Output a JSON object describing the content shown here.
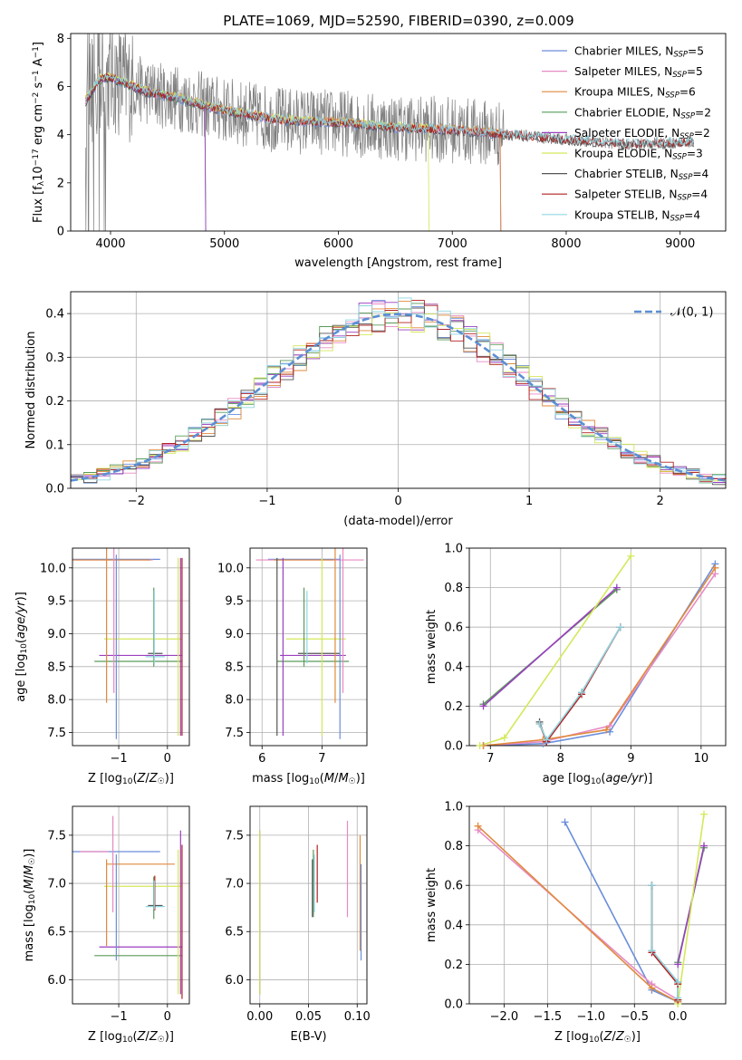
{
  "figure_title": "PLATE=1069, MJD=52590, FIBERID=0390, z=0.009",
  "colors": {
    "series": [
      "#6a8edb",
      "#e78ac3",
      "#e08a3c",
      "#5a9a5a",
      "#9b3fbf",
      "#d4e85a",
      "#555555",
      "#b22020",
      "#8fd6e0"
    ],
    "data": "#808080",
    "gauss": "#5b8fd4",
    "grid": "#b0b0b0"
  },
  "legend_entries": [
    {
      "name": "Chabrier MILES, N",
      "sub": "SSP",
      "val": "=5"
    },
    {
      "name": "Salpeter MILES, N",
      "sub": "SSP",
      "val": "=5"
    },
    {
      "name": "Kroupa MILES, N",
      "sub": "SSP",
      "val": "=6"
    },
    {
      "name": "Chabrier ELODIE, N",
      "sub": "SSP",
      "val": "=2"
    },
    {
      "name": "Salpeter ELODIE, N",
      "sub": "SSP",
      "val": "=2"
    },
    {
      "name": "Kroupa ELODIE, N",
      "sub": "SSP",
      "val": "=3"
    },
    {
      "name": "Chabrier STELIB, N",
      "sub": "SSP",
      "val": "=4"
    },
    {
      "name": "Salpeter STELIB, N",
      "sub": "SSP",
      "val": "=4"
    },
    {
      "name": "Kroupa STELIB, N",
      "sub": "SSP",
      "val": "=4"
    }
  ],
  "chart_data": [
    {
      "type": "line",
      "id": "spectrum",
      "xlabel": "wavelength [Angstrom, rest frame]",
      "ylabel": "Flux [fλ10⁻¹⁷ erg cm⁻² s⁻¹ A⁻¹]",
      "xlim": [
        3650,
        9400
      ],
      "ylim": [
        0,
        8.2
      ],
      "xticks": [
        4000,
        5000,
        6000,
        7000,
        8000,
        9000
      ],
      "yticks": [
        0,
        2,
        4,
        6,
        8
      ],
      "data_range": [
        3780,
        9120
      ],
      "data_envelope": {
        "x": [
          3780,
          3900,
          4000,
          4300,
          4600,
          5000,
          5500,
          6000,
          6500,
          7000,
          7500,
          8000,
          8500,
          9120
        ],
        "y": [
          5.4,
          6.3,
          6.4,
          5.8,
          5.5,
          5.0,
          4.6,
          4.5,
          4.3,
          4.2,
          4.0,
          3.8,
          3.6,
          3.7
        ]
      },
      "models": [
        {
          "series": 0,
          "range": [
            3780,
            7420
          ]
        },
        {
          "series": 1,
          "range": [
            3780,
            7420
          ]
        },
        {
          "series": 2,
          "range": [
            3780,
            7420
          ]
        },
        {
          "series": 3,
          "range": [
            3780,
            4830
          ]
        },
        {
          "series": 4,
          "range": [
            3780,
            4830
          ]
        },
        {
          "series": 5,
          "range": [
            3780,
            6790
          ]
        },
        {
          "series": 6,
          "range": [
            3780,
            9120
          ]
        },
        {
          "series": 7,
          "range": [
            3780,
            9120
          ]
        },
        {
          "series": 8,
          "range": [
            3780,
            9120
          ]
        }
      ]
    },
    {
      "type": "histogram",
      "id": "residuals",
      "xlabel": "(data-model)/error",
      "ylabel": "Normed distribution",
      "xlim": [
        -2.5,
        2.5
      ],
      "ylim": [
        0,
        0.45
      ],
      "xticks": [
        -2,
        -1,
        0,
        1,
        2
      ],
      "yticks": [
        0,
        0.1,
        0.2,
        0.3,
        0.4
      ],
      "bin_width": 0.1,
      "legend": "𝒩(0, 1)"
    },
    {
      "type": "errorbar",
      "id": "age_vs_Z",
      "xlabel": "Z [log10(Z/Z☉)]",
      "ylabel": "age  [log10(age/yr)]",
      "xlim": [
        -1.95,
        0.45
      ],
      "ylim": [
        7.3,
        10.3
      ],
      "xticks": [
        -1,
        0
      ],
      "yticks": [
        7.5,
        8.0,
        8.5,
        9.0,
        9.5,
        10.0
      ],
      "points": [
        {
          "s": 0,
          "x": -1.05,
          "y": 10.13,
          "xerr": 0.9,
          "yerr": 0
        },
        {
          "s": 1,
          "x": -1.2,
          "y": 10.12,
          "xerr": 0.9,
          "yerr": 0
        },
        {
          "s": 2,
          "x": -1.25,
          "y": 10.12,
          "xerr": 0.9,
          "yerr": 0
        },
        {
          "s": 5,
          "x": -0.5,
          "y": 8.92,
          "xerr": 0.8,
          "yerr": 0
        },
        {
          "s": 6,
          "x": -0.25,
          "y": 8.7,
          "xerr": 0.15,
          "yerr": 0
        },
        {
          "s": 8,
          "x": -0.25,
          "y": 8.65,
          "xerr": 0.2,
          "yerr": 0
        },
        {
          "s": 4,
          "x": -0.55,
          "y": 8.67,
          "xerr": 0.85,
          "yerr": 0
        },
        {
          "s": 3,
          "x": -0.6,
          "y": 8.58,
          "xerr": 0.9,
          "yerr": 0
        },
        {
          "s": 0,
          "x": -1.05,
          "y": 8.8,
          "xerr": 0,
          "yerr": 1.4
        },
        {
          "s": 2,
          "x": -1.25,
          "y": 9.25,
          "xerr": 0,
          "yerr": 1.3
        },
        {
          "s": 1,
          "x": -1.1,
          "y": 9.3,
          "xerr": 0,
          "yerr": 1.2
        },
        {
          "s": 3,
          "x": -0.28,
          "y": 9.1,
          "xerr": 0,
          "yerr": 0.6
        },
        {
          "s": 8,
          "x": -0.27,
          "y": 9.1,
          "xerr": 0,
          "yerr": 0.55
        },
        {
          "s": 4,
          "x": 0.27,
          "y": 8.8,
          "xerr": 0,
          "yerr": 1.35
        },
        {
          "s": 5,
          "x": 0.22,
          "y": 8.8,
          "xerr": 0,
          "yerr": 1.35
        },
        {
          "s": 7,
          "x": 0.3,
          "y": 8.8,
          "xerr": 0,
          "yerr": 1.35
        }
      ]
    },
    {
      "type": "errorbar",
      "id": "age_vs_mass",
      "xlabel": "mass [log10(M/M☉)]",
      "ylabel": "",
      "xlim": [
        5.8,
        7.75
      ],
      "ylim": [
        7.3,
        10.3
      ],
      "xticks": [
        6,
        7
      ],
      "yticks": [
        7.5,
        8.0,
        8.5,
        9.0,
        9.5,
        10.0
      ],
      "points": [
        {
          "s": 0,
          "x": 6.7,
          "y": 10.13,
          "xerr": 0.6,
          "yerr": 0
        },
        {
          "s": 1,
          "x": 6.8,
          "y": 10.12,
          "xerr": 0.9,
          "yerr": 0
        },
        {
          "s": 2,
          "x": 6.7,
          "y": 10.12,
          "xerr": 0.5,
          "yerr": 0
        },
        {
          "s": 5,
          "x": 6.9,
          "y": 8.92,
          "xerr": 0.5,
          "yerr": 0
        },
        {
          "s": 6,
          "x": 6.95,
          "y": 8.7,
          "xerr": 0.35,
          "yerr": 0
        },
        {
          "s": 4,
          "x": 6.85,
          "y": 8.67,
          "xerr": 0.55,
          "yerr": 0
        },
        {
          "s": 3,
          "x": 6.85,
          "y": 8.58,
          "xerr": 0.6,
          "yerr": 0
        },
        {
          "s": 0,
          "x": 7.3,
          "y": 8.8,
          "xerr": 0,
          "yerr": 1.4
        },
        {
          "s": 2,
          "x": 7.22,
          "y": 9.25,
          "xerr": 0,
          "yerr": 1.3
        },
        {
          "s": 1,
          "x": 7.35,
          "y": 9.3,
          "xerr": 0,
          "yerr": 1.2
        },
        {
          "s": 3,
          "x": 6.7,
          "y": 9.1,
          "xerr": 0,
          "yerr": 0.6
        },
        {
          "s": 8,
          "x": 6.75,
          "y": 9.1,
          "xerr": 0,
          "yerr": 0.55
        },
        {
          "s": 6,
          "x": 6.25,
          "y": 8.8,
          "xerr": 0,
          "yerr": 1.35
        },
        {
          "s": 4,
          "x": 6.35,
          "y": 8.8,
          "xerr": 0,
          "yerr": 1.35
        },
        {
          "s": 5,
          "x": 7.0,
          "y": 8.8,
          "xerr": 0,
          "yerr": 1.35
        }
      ]
    },
    {
      "type": "line",
      "id": "weight_vs_age",
      "xlabel": "age  [log10(age/yr)]",
      "ylabel": "mass weight",
      "xlim": [
        6.7,
        10.35
      ],
      "ylim": [
        0,
        1.0
      ],
      "xticks": [
        7,
        8,
        9,
        10
      ],
      "yticks": [
        0,
        0.2,
        0.4,
        0.6,
        0.8,
        1.0
      ],
      "series": [
        {
          "s": 0,
          "x": [
            6.9,
            7.75,
            8.7,
            10.2
          ],
          "y": [
            0.0,
            0.01,
            0.07,
            0.92
          ]
        },
        {
          "s": 1,
          "x": [
            6.9,
            7.75,
            8.7,
            10.2
          ],
          "y": [
            0.0,
            0.02,
            0.1,
            0.87
          ]
        },
        {
          "s": 2,
          "x": [
            6.9,
            7.75,
            8.65,
            10.2
          ],
          "y": [
            0.0,
            0.03,
            0.08,
            0.9
          ]
        },
        {
          "s": 3,
          "x": [
            6.9,
            8.8
          ],
          "y": [
            0.21,
            0.79
          ]
        },
        {
          "s": 4,
          "x": [
            6.9,
            8.8
          ],
          "y": [
            0.2,
            0.8
          ]
        },
        {
          "s": 5,
          "x": [
            6.85,
            7.2,
            9.0
          ],
          "y": [
            0.0,
            0.04,
            0.96
          ]
        },
        {
          "s": 6,
          "x": [
            7.7,
            7.8,
            8.3,
            8.85
          ],
          "y": [
            0.12,
            0.02,
            0.27,
            0.6
          ]
        },
        {
          "s": 7,
          "x": [
            7.7,
            7.8,
            8.3,
            8.85
          ],
          "y": [
            0.11,
            0.02,
            0.26,
            0.6
          ]
        },
        {
          "s": 8,
          "x": [
            7.7,
            7.8,
            8.3,
            8.85
          ],
          "y": [
            0.11,
            0.03,
            0.27,
            0.6
          ]
        }
      ]
    },
    {
      "type": "errorbar",
      "id": "mass_vs_Z",
      "xlabel": "Z [log10(Z/Z☉)]",
      "ylabel": "mass [log10(M/M☉)]",
      "xlim": [
        -1.95,
        0.45
      ],
      "ylim": [
        5.75,
        7.8
      ],
      "xticks": [
        -1,
        0
      ],
      "yticks": [
        6.0,
        6.5,
        7.0,
        7.5
      ],
      "points": [
        {
          "s": 0,
          "x": -1.05,
          "y": 7.33,
          "xerr": 0.9,
          "yerr": 0
        },
        {
          "s": 1,
          "x": -1.5,
          "y": 7.33,
          "xerr": 0.3,
          "yerr": 0
        },
        {
          "s": 2,
          "x": -0.55,
          "y": 7.2,
          "xerr": 0.7,
          "yerr": 0
        },
        {
          "s": 5,
          "x": -0.5,
          "y": 6.97,
          "xerr": 0.8,
          "yerr": 0
        },
        {
          "s": 6,
          "x": -0.25,
          "y": 6.77,
          "xerr": 0.15,
          "yerr": 0
        },
        {
          "s": 8,
          "x": -0.25,
          "y": 6.76,
          "xerr": 0.2,
          "yerr": 0
        },
        {
          "s": 4,
          "x": -0.55,
          "y": 6.34,
          "xerr": 0.85,
          "yerr": 0
        },
        {
          "s": 3,
          "x": -0.6,
          "y": 6.25,
          "xerr": 0.9,
          "yerr": 0
        },
        {
          "s": 0,
          "x": -1.05,
          "y": 6.75,
          "xerr": 0,
          "yerr": 0.55
        },
        {
          "s": 2,
          "x": -1.25,
          "y": 6.8,
          "xerr": 0,
          "yerr": 0.45
        },
        {
          "s": 1,
          "x": -1.12,
          "y": 7.2,
          "xerr": 0,
          "yerr": 0.5
        },
        {
          "s": 3,
          "x": -0.28,
          "y": 6.85,
          "xerr": 0,
          "yerr": 0.22
        },
        {
          "s": 7,
          "x": -0.26,
          "y": 6.9,
          "xerr": 0,
          "yerr": 0.18
        },
        {
          "s": 8,
          "x": -0.27,
          "y": 6.88,
          "xerr": 0,
          "yerr": 0.15
        },
        {
          "s": 4,
          "x": 0.27,
          "y": 6.7,
          "xerr": 0,
          "yerr": 0.85
        },
        {
          "s": 5,
          "x": 0.22,
          "y": 6.6,
          "xerr": 0,
          "yerr": 0.75
        },
        {
          "s": 7,
          "x": 0.3,
          "y": 6.6,
          "xerr": 0,
          "yerr": 0.8
        }
      ]
    },
    {
      "type": "errorbar",
      "id": "mass_vs_ebv",
      "xlabel": "E(B-V)",
      "ylabel": "",
      "xlim": [
        -0.01,
        0.11
      ],
      "ylim": [
        5.75,
        7.8
      ],
      "xticks": [
        0.0,
        0.05,
        0.1
      ],
      "yticks": [
        6.0,
        6.5,
        7.0,
        7.5
      ],
      "points": [
        {
          "s": 4,
          "x": 0.0,
          "y": 6.7,
          "xerr": 0,
          "yerr": 0.85
        },
        {
          "s": 5,
          "x": 0.0,
          "y": 6.7,
          "xerr": 0,
          "yerr": 0.85
        },
        {
          "s": 3,
          "x": 0.055,
          "y": 7.0,
          "xerr": 0,
          "yerr": 0.35
        },
        {
          "s": 6,
          "x": 0.054,
          "y": 6.95,
          "xerr": 0,
          "yerr": 0.3
        },
        {
          "s": 8,
          "x": 0.056,
          "y": 7.0,
          "xerr": 0,
          "yerr": 0.3
        },
        {
          "s": 7,
          "x": 0.059,
          "y": 7.1,
          "xerr": 0,
          "yerr": 0.3
        },
        {
          "s": 1,
          "x": 0.09,
          "y": 7.15,
          "xerr": 0,
          "yerr": 0.5
        },
        {
          "s": 2,
          "x": 0.103,
          "y": 6.9,
          "xerr": 0,
          "yerr": 0.6
        },
        {
          "s": 0,
          "x": 0.104,
          "y": 6.7,
          "xerr": 0,
          "yerr": 0.5
        }
      ]
    },
    {
      "type": "line",
      "id": "weight_vs_Z",
      "xlabel": "Z [log10(Z/Z☉)]",
      "ylabel": "mass weight",
      "xlim": [
        -2.4,
        0.55
      ],
      "ylim": [
        0,
        1.0
      ],
      "xticks": [
        -2.0,
        -1.5,
        -1.0,
        -0.5,
        0.0
      ],
      "yticks": [
        0,
        0.2,
        0.4,
        0.6,
        0.8,
        1.0
      ],
      "series": [
        {
          "s": 0,
          "x": [
            -1.3,
            -0.3,
            0.0
          ],
          "y": [
            0.92,
            0.07,
            0.01
          ]
        },
        {
          "s": 1,
          "x": [
            -2.3,
            -0.3,
            0.0
          ],
          "y": [
            0.88,
            0.1,
            0.02
          ]
        },
        {
          "s": 2,
          "x": [
            -2.3,
            -0.3,
            0.0
          ],
          "y": [
            0.9,
            0.08,
            0.01
          ]
        },
        {
          "s": 3,
          "x": [
            0.0,
            0.3
          ],
          "y": [
            0.21,
            0.79
          ]
        },
        {
          "s": 4,
          "x": [
            0.0,
            0.3
          ],
          "y": [
            0.2,
            0.8
          ]
        },
        {
          "s": 5,
          "x": [
            0.0,
            0.3
          ],
          "y": [
            0.0,
            0.96
          ]
        },
        {
          "s": 6,
          "x": [
            -0.3,
            -0.3,
            0.0,
            0.0
          ],
          "y": [
            0.6,
            0.27,
            0.11,
            0.02
          ]
        },
        {
          "s": 7,
          "x": [
            -0.3,
            -0.3,
            0.0,
            0.0
          ],
          "y": [
            0.6,
            0.26,
            0.1,
            0.02
          ]
        },
        {
          "s": 8,
          "x": [
            -0.3,
            -0.3,
            0.0,
            0.0
          ],
          "y": [
            0.6,
            0.27,
            0.11,
            0.03
          ]
        }
      ]
    }
  ]
}
